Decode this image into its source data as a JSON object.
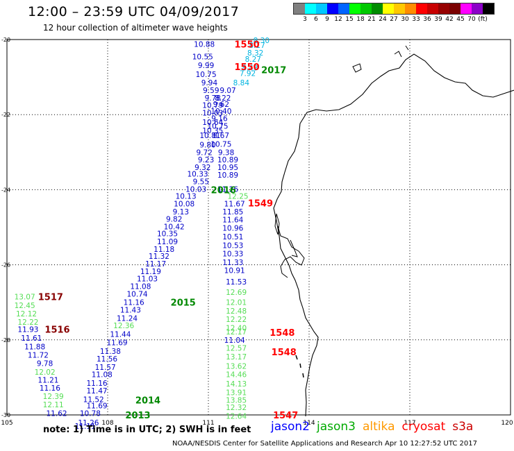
{
  "header": {
    "title": "12:00 – 23:59 UTC 04/09/2017",
    "subtitle": "12 hour collection of altimeter wave heights"
  },
  "colorbar": {
    "colors": [
      "#808080",
      "#00ffff",
      "#00c8ff",
      "#0000ff",
      "#0064ff",
      "#00ff00",
      "#00c800",
      "#008c00",
      "#ffff00",
      "#ffc800",
      "#ff8c00",
      "#ff0000",
      "#c80000",
      "#960000",
      "#7a0000",
      "#ff00ff",
      "#8c00c8",
      "#000000"
    ],
    "tick_labels": [
      "3",
      "6",
      "9",
      "12",
      "15",
      "18",
      "21",
      "24",
      "27",
      "30",
      "33",
      "36",
      "39",
      "42",
      "45",
      "70",
      "(ft)"
    ]
  },
  "map": {
    "lon_labels": [
      "105",
      "108",
      "111",
      "114",
      "117",
      "120"
    ],
    "lat_labels": [
      "-20",
      "-22",
      "-24",
      "-26",
      "-28",
      "-30"
    ],
    "lon_range": [
      105,
      120
    ],
    "lat_range": [
      -30,
      -20
    ],
    "colors": {
      "jason2": "#0000c8",
      "jason3": "#00aa00",
      "jason3_light": "#55dd55",
      "cryosat": "#ff0000",
      "cyan": "#00b4e0",
      "dark_red": "#880000",
      "dark_green": "#008800",
      "grid": "#000000",
      "coast": "#000000"
    },
    "time_labels": [
      {
        "text": "1550",
        "lon": 112.15,
        "lat": -20.12,
        "color": "cryosat"
      },
      {
        "text": "1550",
        "lon": 112.15,
        "lat": -20.72,
        "color": "cryosat"
      },
      {
        "text": "2017",
        "lon": 112.95,
        "lat": -20.8,
        "color": "dark_green"
      },
      {
        "text": "2016",
        "lon": 111.45,
        "lat": -24.0,
        "color": "dark_green"
      },
      {
        "text": "1549",
        "lon": 112.55,
        "lat": -24.35,
        "color": "cryosat"
      },
      {
        "text": "2015",
        "lon": 110.25,
        "lat": -27.0,
        "color": "dark_green"
      },
      {
        "text": "1517",
        "lon": 106.3,
        "lat": -26.85,
        "color": "dark_red"
      },
      {
        "text": "1516",
        "lon": 106.5,
        "lat": -27.72,
        "color": "dark_red"
      },
      {
        "text": "1548",
        "lon": 113.2,
        "lat": -27.8,
        "color": "cryosat"
      },
      {
        "text": "1548",
        "lon": 113.25,
        "lat": -28.32,
        "color": "cryosat"
      },
      {
        "text": "2014",
        "lon": 109.2,
        "lat": -29.6,
        "color": "dark_green"
      },
      {
        "text": "2013",
        "lon": 108.9,
        "lat": -30.0,
        "color": "dark_green"
      },
      {
        "text": "1547",
        "lon": 113.3,
        "lat": -30.0,
        "color": "cryosat"
      }
    ],
    "observations": [
      {
        "v": "8.30",
        "lon": 112.58,
        "lat": -20.02,
        "c": "cyan"
      },
      {
        "v": "8.17",
        "lon": 112.45,
        "lat": -20.15,
        "c": "cyan"
      },
      {
        "v": "8.32",
        "lon": 112.4,
        "lat": -20.35,
        "c": "cyan"
      },
      {
        "v": "8.27",
        "lon": 112.33,
        "lat": -20.52,
        "c": "cyan"
      },
      {
        "v": "8.43",
        "lon": 112.24,
        "lat": -20.75,
        "c": "cyan"
      },
      {
        "v": "7.92",
        "lon": 112.17,
        "lat": -20.9,
        "c": "cyan"
      },
      {
        "v": "8.84",
        "lon": 111.98,
        "lat": -21.15,
        "c": "cyan"
      },
      {
        "v": "10.88",
        "lon": 110.88,
        "lat": -20.12,
        "c": "jason2"
      },
      {
        "v": "10.55",
        "lon": 110.83,
        "lat": -20.45,
        "c": "jason2"
      },
      {
        "v": "9.99",
        "lon": 110.93,
        "lat": -20.68,
        "c": "jason2"
      },
      {
        "v": "10.75",
        "lon": 110.93,
        "lat": -20.92,
        "c": "jason2"
      },
      {
        "v": "9.94",
        "lon": 111.03,
        "lat": -21.15,
        "c": "jason2"
      },
      {
        "v": "9.59",
        "lon": 111.08,
        "lat": -21.35,
        "c": "jason2"
      },
      {
        "v": "9.07",
        "lon": 111.58,
        "lat": -21.35,
        "c": "jason2"
      },
      {
        "v": "9.78",
        "lon": 111.13,
        "lat": -21.55,
        "c": "jason2"
      },
      {
        "v": "8.22",
        "lon": 111.43,
        "lat": -21.55,
        "c": "jason2"
      },
      {
        "v": "10.79",
        "lon": 111.13,
        "lat": -21.75,
        "c": "jason2"
      },
      {
        "v": "9.62",
        "lon": 111.38,
        "lat": -21.72,
        "c": "jason2"
      },
      {
        "v": "10.40",
        "lon": 111.38,
        "lat": -21.9,
        "c": "jason2"
      },
      {
        "v": "10.03",
        "lon": 111.13,
        "lat": -21.95,
        "c": "jason2"
      },
      {
        "v": "9.16",
        "lon": 111.33,
        "lat": -22.1,
        "c": "jason2"
      },
      {
        "v": "10.64",
        "lon": 111.13,
        "lat": -22.2,
        "c": "jason2"
      },
      {
        "v": "10.75",
        "lon": 111.28,
        "lat": -22.3,
        "c": "jason2"
      },
      {
        "v": "10.35",
        "lon": 111.13,
        "lat": -22.42,
        "c": "jason2"
      },
      {
        "v": "10.81",
        "lon": 111.05,
        "lat": -22.55,
        "c": "jason2"
      },
      {
        "v": "8.67",
        "lon": 111.38,
        "lat": -22.55,
        "c": "jason2"
      },
      {
        "v": "9.80",
        "lon": 110.98,
        "lat": -22.8,
        "c": "jason2"
      },
      {
        "v": "10.75",
        "lon": 111.38,
        "lat": -22.78,
        "c": "jason2"
      },
      {
        "v": "9.72",
        "lon": 110.88,
        "lat": -23.0,
        "c": "jason2"
      },
      {
        "v": "9.38",
        "lon": 111.53,
        "lat": -23.0,
        "c": "jason2"
      },
      {
        "v": "9.23",
        "lon": 110.93,
        "lat": -23.2,
        "c": "jason2"
      },
      {
        "v": "10.89",
        "lon": 111.58,
        "lat": -23.2,
        "c": "jason2"
      },
      {
        "v": "9.32",
        "lon": 110.83,
        "lat": -23.4,
        "c": "jason2"
      },
      {
        "v": "10.95",
        "lon": 111.58,
        "lat": -23.4,
        "c": "jason2"
      },
      {
        "v": "10.33",
        "lon": 110.68,
        "lat": -23.58,
        "c": "jason2"
      },
      {
        "v": "10.89",
        "lon": 111.58,
        "lat": -23.6,
        "c": "jason2"
      },
      {
        "v": "9.55",
        "lon": 110.78,
        "lat": -23.78,
        "c": "jason2"
      },
      {
        "v": "10.03",
        "lon": 110.63,
        "lat": -23.98,
        "c": "jason2"
      },
      {
        "v": "11.26",
        "lon": 111.58,
        "lat": -23.98,
        "c": "jason2"
      },
      {
        "v": "10.13",
        "lon": 110.33,
        "lat": -24.17,
        "c": "jason2"
      },
      {
        "v": "12.25",
        "lon": 111.88,
        "lat": -24.17,
        "c": "jason3_light"
      },
      {
        "v": "10.08",
        "lon": 110.28,
        "lat": -24.37,
        "c": "jason2"
      },
      {
        "v": "11.67",
        "lon": 111.78,
        "lat": -24.37,
        "c": "jason2"
      },
      {
        "v": "9.13",
        "lon": 110.18,
        "lat": -24.58,
        "c": "jason2"
      },
      {
        "v": "11.85",
        "lon": 111.73,
        "lat": -24.58,
        "c": "jason2"
      },
      {
        "v": "9.82",
        "lon": 109.98,
        "lat": -24.78,
        "c": "jason2"
      },
      {
        "v": "11.64",
        "lon": 111.73,
        "lat": -24.8,
        "c": "jason2"
      },
      {
        "v": "10.42",
        "lon": 109.98,
        "lat": -24.98,
        "c": "jason2"
      },
      {
        "v": "10.96",
        "lon": 111.73,
        "lat": -25.02,
        "c": "jason2"
      },
      {
        "v": "10.35",
        "lon": 109.78,
        "lat": -25.17,
        "c": "jason2"
      },
      {
        "v": "11.09",
        "lon": 109.78,
        "lat": -25.38,
        "c": "jason2"
      },
      {
        "v": "10.51",
        "lon": 111.73,
        "lat": -25.25,
        "c": "jason2"
      },
      {
        "v": "11.18",
        "lon": 109.68,
        "lat": -25.58,
        "c": "jason2"
      },
      {
        "v": "10.53",
        "lon": 111.73,
        "lat": -25.48,
        "c": "jason2"
      },
      {
        "v": "11.32",
        "lon": 109.53,
        "lat": -25.77,
        "c": "jason2"
      },
      {
        "v": "10.33",
        "lon": 111.73,
        "lat": -25.7,
        "c": "jason2"
      },
      {
        "v": "11.17",
        "lon": 109.43,
        "lat": -25.97,
        "c": "jason2"
      },
      {
        "v": "11.33",
        "lon": 111.73,
        "lat": -25.93,
        "c": "jason2"
      },
      {
        "v": "11.19",
        "lon": 109.28,
        "lat": -26.17,
        "c": "jason2"
      },
      {
        "v": "10.91",
        "lon": 111.78,
        "lat": -26.15,
        "c": "jason2"
      },
      {
        "v": "11.03",
        "lon": 109.18,
        "lat": -26.37,
        "c": "jason2"
      },
      {
        "v": "11.53",
        "lon": 111.83,
        "lat": -26.45,
        "c": "jason2"
      },
      {
        "v": "11.08",
        "lon": 108.98,
        "lat": -26.57,
        "c": "jason2"
      },
      {
        "v": "10.74",
        "lon": 108.88,
        "lat": -26.77,
        "c": "jason2"
      },
      {
        "v": "12.69",
        "lon": 111.83,
        "lat": -26.73,
        "c": "jason3_light"
      },
      {
        "v": "11.16",
        "lon": 108.78,
        "lat": -27.0,
        "c": "jason2"
      },
      {
        "v": "12.01",
        "lon": 111.83,
        "lat": -27.0,
        "c": "jason3_light"
      },
      {
        "v": "11.43",
        "lon": 108.68,
        "lat": -27.2,
        "c": "jason2"
      },
      {
        "v": "12.48",
        "lon": 111.83,
        "lat": -27.23,
        "c": "jason3_light"
      },
      {
        "v": "11.24",
        "lon": 108.58,
        "lat": -27.42,
        "c": "jason2"
      },
      {
        "v": "12.22",
        "lon": 111.83,
        "lat": -27.45,
        "c": "jason3_light"
      },
      {
        "v": "12.36",
        "lon": 108.48,
        "lat": -27.62,
        "c": "jason3_light"
      },
      {
        "v": "11.44",
        "lon": 108.38,
        "lat": -27.85,
        "c": "jason2"
      },
      {
        "v": "12.40",
        "lon": 111.83,
        "lat": -27.68,
        "c": "jason3_light"
      },
      {
        "v": "12.17",
        "lon": 111.83,
        "lat": -27.78,
        "c": "jason3_light"
      },
      {
        "v": "11.69",
        "lon": 108.28,
        "lat": -28.07,
        "c": "jason2"
      },
      {
        "v": "11.04",
        "lon": 111.78,
        "lat": -28.0,
        "c": "jason2"
      },
      {
        "v": "11.38",
        "lon": 108.08,
        "lat": -28.3,
        "c": "jason2"
      },
      {
        "v": "12.57",
        "lon": 111.83,
        "lat": -28.22,
        "c": "jason3_light"
      },
      {
        "v": "11.56",
        "lon": 107.98,
        "lat": -28.5,
        "c": "jason2"
      },
      {
        "v": "13.17",
        "lon": 111.83,
        "lat": -28.45,
        "c": "jason3_light"
      },
      {
        "v": "11.57",
        "lon": 107.93,
        "lat": -28.72,
        "c": "jason2"
      },
      {
        "v": "13.62",
        "lon": 111.83,
        "lat": -28.7,
        "c": "jason3_light"
      },
      {
        "v": "11.08",
        "lon": 107.83,
        "lat": -28.92,
        "c": "jason2"
      },
      {
        "v": "14.46",
        "lon": 111.83,
        "lat": -28.92,
        "c": "jason3_light"
      },
      {
        "v": "11.16",
        "lon": 107.68,
        "lat": -29.15,
        "c": "jason2"
      },
      {
        "v": "11.47",
        "lon": 107.68,
        "lat": -29.35,
        "c": "jason2"
      },
      {
        "v": "14.13",
        "lon": 111.83,
        "lat": -29.17,
        "c": "jason3_light"
      },
      {
        "v": "11.52",
        "lon": 107.58,
        "lat": -29.58,
        "c": "jason2"
      },
      {
        "v": "13.91",
        "lon": 111.83,
        "lat": -29.4,
        "c": "jason3_light"
      },
      {
        "v": "11.69",
        "lon": 107.68,
        "lat": -29.75,
        "c": "jason2"
      },
      {
        "v": "13.85",
        "lon": 111.83,
        "lat": -29.6,
        "c": "jason3_light"
      },
      {
        "v": "10.78",
        "lon": 107.48,
        "lat": -29.95,
        "c": "jason2"
      },
      {
        "v": "12.32",
        "lon": 111.83,
        "lat": -29.8,
        "c": "jason3_light"
      },
      {
        "v": "11.26",
        "lon": 107.43,
        "lat": -30.2,
        "c": "jason2"
      },
      {
        "v": "12.64",
        "lon": 111.83,
        "lat": -30.03,
        "c": "jason3_light"
      },
      {
        "v": "11.11",
        "lon": 107.33,
        "lat": -30.3,
        "c": "jason2"
      },
      {
        "v": "13.07",
        "lon": 105.53,
        "lat": -26.85,
        "c": "jason3_light"
      },
      {
        "v": "12.45",
        "lon": 105.53,
        "lat": -27.08,
        "c": "jason3_light"
      },
      {
        "v": "12.12",
        "lon": 105.58,
        "lat": -27.3,
        "c": "jason3_light"
      },
      {
        "v": "12.22",
        "lon": 105.63,
        "lat": -27.52,
        "c": "jason3_light"
      },
      {
        "v": "11.93",
        "lon": 105.63,
        "lat": -27.72,
        "c": "jason2"
      },
      {
        "v": "11.61",
        "lon": 105.73,
        "lat": -27.95,
        "c": "jason2"
      },
      {
        "v": "11.88",
        "lon": 105.83,
        "lat": -28.18,
        "c": "jason2"
      },
      {
        "v": "11.72",
        "lon": 105.93,
        "lat": -28.4,
        "c": "jason2"
      },
      {
        "v": "9.78",
        "lon": 106.13,
        "lat": -28.62,
        "c": "jason2"
      },
      {
        "v": "12.02",
        "lon": 106.13,
        "lat": -28.85,
        "c": "jason3_light"
      },
      {
        "v": "11.21",
        "lon": 106.23,
        "lat": -29.07,
        "c": "jason2"
      },
      {
        "v": "11.16",
        "lon": 106.28,
        "lat": -29.28,
        "c": "jason2"
      },
      {
        "v": "12.39",
        "lon": 106.38,
        "lat": -29.5,
        "c": "jason3_light"
      },
      {
        "v": "12.11",
        "lon": 106.38,
        "lat": -29.72,
        "c": "jason3_light"
      },
      {
        "v": "11.62",
        "lon": 106.48,
        "lat": -29.95,
        "c": "jason2"
      }
    ]
  },
  "footer": {
    "note": "note:  1) Time is in UTC;  2) SWH is in feet",
    "legend": [
      {
        "label": "jason2",
        "color": "#0000ff"
      },
      {
        "label": "jason3",
        "color": "#00aa00"
      },
      {
        "label": "altika",
        "color": "#ff9900"
      },
      {
        "label": "cryosat",
        "color": "#ff0000"
      },
      {
        "label": "s3a",
        "color": "#cc0000"
      }
    ],
    "credit": "NOAA/NESDIS Center for Satellite Applications and Research   Apr 10 12:27:52 UTC 2017"
  }
}
